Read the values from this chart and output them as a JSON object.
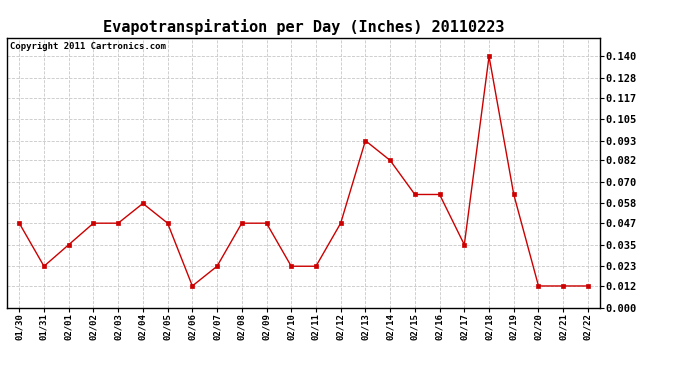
{
  "title": "Evapotranspiration per Day (Inches) 20110223",
  "copyright_text": "Copyright 2011 Cartronics.com",
  "x_labels": [
    "01/30",
    "01/31",
    "02/01",
    "02/02",
    "02/03",
    "02/04",
    "02/05",
    "02/06",
    "02/07",
    "02/08",
    "02/09",
    "02/10",
    "02/11",
    "02/12",
    "02/13",
    "02/14",
    "02/15",
    "02/16",
    "02/17",
    "02/18",
    "02/19",
    "02/20",
    "02/21",
    "02/22"
  ],
  "y_values": [
    0.047,
    0.023,
    0.035,
    0.047,
    0.047,
    0.058,
    0.047,
    0.012,
    0.023,
    0.047,
    0.047,
    0.023,
    0.023,
    0.047,
    0.093,
    0.082,
    0.063,
    0.063,
    0.035,
    0.14,
    0.063,
    0.012,
    0.012,
    0.012
  ],
  "y_ticks": [
    0.0,
    0.012,
    0.023,
    0.035,
    0.047,
    0.058,
    0.07,
    0.082,
    0.093,
    0.105,
    0.117,
    0.128,
    0.14
  ],
  "ylim": [
    0.0,
    0.1505
  ],
  "line_color": "#cc0000",
  "marker": "s",
  "marker_size": 2.5,
  "background_color": "#ffffff",
  "plot_bg_color": "#ffffff",
  "grid_color": "#c8c8c8",
  "title_fontsize": 11,
  "copyright_fontsize": 6.5,
  "tick_fontsize": 7.5,
  "x_tick_fontsize": 6.5
}
